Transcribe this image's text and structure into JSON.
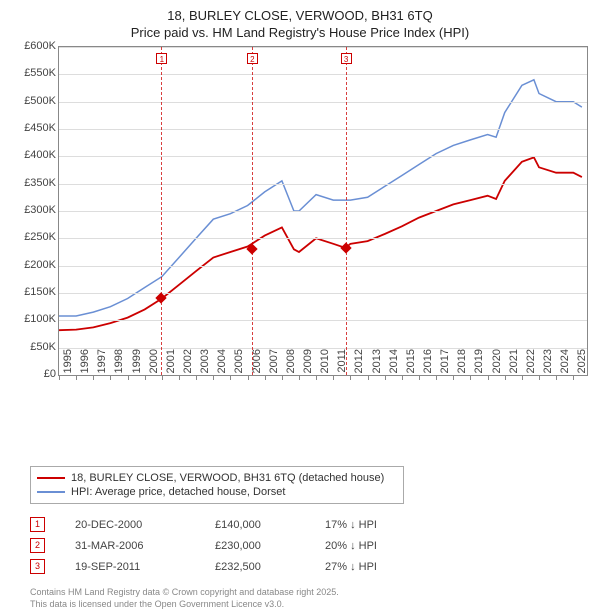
{
  "title_line1": "18, BURLEY CLOSE, VERWOOD, BH31 6TQ",
  "title_line2": "Price paid vs. HM Land Registry's House Price Index (HPI)",
  "chart": {
    "type": "line",
    "background_color": "#ffffff",
    "grid_color": "#dddddd",
    "axis_color": "#888888",
    "text_color": "#444444",
    "x": {
      "years": [
        1995,
        1996,
        1997,
        1998,
        1999,
        2000,
        2001,
        2002,
        2003,
        2004,
        2005,
        2006,
        2007,
        2008,
        2009,
        2010,
        2011,
        2012,
        2013,
        2014,
        2015,
        2016,
        2017,
        2018,
        2019,
        2020,
        2021,
        2022,
        2023,
        2024,
        2025
      ],
      "xmin": 1995,
      "xmax": 2025.8
    },
    "y": {
      "ticks": [
        0,
        50000,
        100000,
        150000,
        200000,
        250000,
        300000,
        350000,
        400000,
        450000,
        500000,
        550000,
        600000
      ],
      "labels": [
        "£0",
        "£50K",
        "£100K",
        "£150K",
        "£200K",
        "£250K",
        "£300K",
        "£350K",
        "£400K",
        "£450K",
        "£500K",
        "£550K",
        "£600K"
      ],
      "ymin": 0,
      "ymax": 600000
    },
    "series_hpi": {
      "color": "#6a8fd4",
      "line_width": 1.5,
      "label": "HPI: Average price, detached house, Dorset",
      "data": [
        [
          1995,
          108000
        ],
        [
          1996,
          108000
        ],
        [
          1997,
          115000
        ],
        [
          1998,
          125000
        ],
        [
          1999,
          140000
        ],
        [
          2000,
          160000
        ],
        [
          2001,
          180000
        ],
        [
          2002,
          215000
        ],
        [
          2003,
          250000
        ],
        [
          2004,
          285000
        ],
        [
          2005,
          295000
        ],
        [
          2006,
          310000
        ],
        [
          2007,
          335000
        ],
        [
          2008,
          355000
        ],
        [
          2008.7,
          300000
        ],
        [
          2009,
          300000
        ],
        [
          2010,
          330000
        ],
        [
          2011,
          320000
        ],
        [
          2012,
          320000
        ],
        [
          2013,
          325000
        ],
        [
          2014,
          345000
        ],
        [
          2015,
          365000
        ],
        [
          2016,
          385000
        ],
        [
          2017,
          405000
        ],
        [
          2018,
          420000
        ],
        [
          2019,
          430000
        ],
        [
          2020,
          440000
        ],
        [
          2020.5,
          435000
        ],
        [
          2021,
          480000
        ],
        [
          2022,
          530000
        ],
        [
          2022.7,
          540000
        ],
        [
          2023,
          515000
        ],
        [
          2024,
          500000
        ],
        [
          2025,
          500000
        ],
        [
          2025.5,
          490000
        ]
      ]
    },
    "series_property": {
      "color": "#cc0000",
      "line_width": 1.8,
      "label": "18, BURLEY CLOSE, VERWOOD, BH31 6TQ (detached house)",
      "data": [
        [
          1995,
          82000
        ],
        [
          1996,
          83000
        ],
        [
          1997,
          87000
        ],
        [
          1998,
          95000
        ],
        [
          1999,
          105000
        ],
        [
          2000,
          120000
        ],
        [
          2001,
          140000
        ],
        [
          2002,
          165000
        ],
        [
          2003,
          190000
        ],
        [
          2004,
          215000
        ],
        [
          2005,
          225000
        ],
        [
          2006,
          235000
        ],
        [
          2007,
          255000
        ],
        [
          2008,
          270000
        ],
        [
          2008.7,
          230000
        ],
        [
          2009,
          225000
        ],
        [
          2010,
          250000
        ],
        [
          2011,
          240000
        ],
        [
          2011.7,
          232500
        ],
        [
          2012,
          240000
        ],
        [
          2013,
          245000
        ],
        [
          2014,
          258000
        ],
        [
          2015,
          272000
        ],
        [
          2016,
          288000
        ],
        [
          2017,
          300000
        ],
        [
          2018,
          312000
        ],
        [
          2019,
          320000
        ],
        [
          2020,
          328000
        ],
        [
          2020.5,
          322000
        ],
        [
          2021,
          355000
        ],
        [
          2022,
          390000
        ],
        [
          2022.7,
          398000
        ],
        [
          2023,
          380000
        ],
        [
          2024,
          370000
        ],
        [
          2025,
          370000
        ],
        [
          2025.5,
          362000
        ]
      ]
    },
    "sale_markers": [
      {
        "n": "1",
        "year": 2000.97,
        "price": 140000
      },
      {
        "n": "2",
        "year": 2006.25,
        "price": 230000
      },
      {
        "n": "3",
        "year": 2011.72,
        "price": 232500
      }
    ]
  },
  "sales_table": [
    {
      "n": "1",
      "date": "20-DEC-2000",
      "price": "£140,000",
      "diff": "17% ↓ HPI"
    },
    {
      "n": "2",
      "date": "31-MAR-2006",
      "price": "£230,000",
      "diff": "20% ↓ HPI"
    },
    {
      "n": "3",
      "date": "19-SEP-2011",
      "price": "£232,500",
      "diff": "27% ↓ HPI"
    }
  ],
  "footer_line1": "Contains HM Land Registry data © Crown copyright and database right 2025.",
  "footer_line2": "This data is licensed under the Open Government Licence v3.0."
}
